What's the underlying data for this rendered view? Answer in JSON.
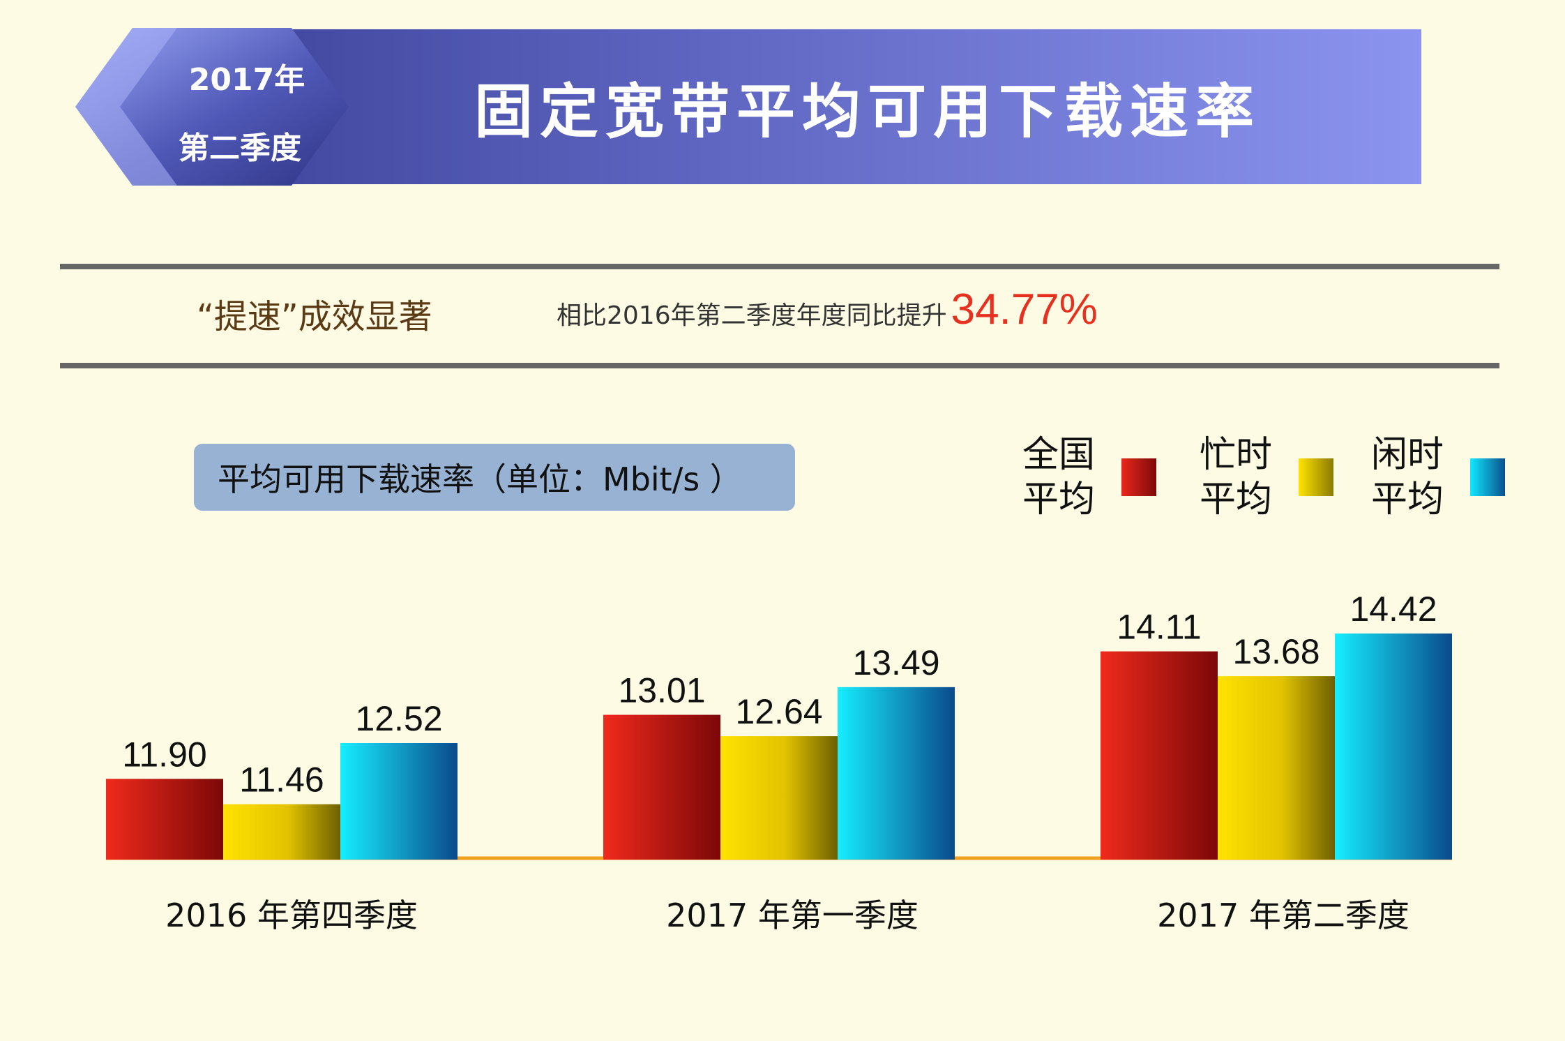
{
  "header": {
    "badge_year": "2017年",
    "badge_quarter": "第二季度",
    "title": "固定宽带平均可用下载速率"
  },
  "subtitle": {
    "left": "“提速”成效显著",
    "right_prefix": "相比2016年第二季度年度同比提升",
    "right_value": "34.77%"
  },
  "unit_label": "平均可用下载速率（单位：Mbit/s ）",
  "colors": {
    "background": "#fdfbe3",
    "national": "#c8141a",
    "busy": "#f2d800",
    "idle": "#12a8d8",
    "highlight": "#e63020",
    "axis": "#f0a020"
  },
  "chart_data": {
    "type": "bar",
    "categories": [
      "2016 年第四季度",
      "2017 年第一季度",
      "2017 年第二季度"
    ],
    "series": [
      {
        "name": "全国平均",
        "legend_lines": [
          "全国",
          "平均"
        ],
        "values": [
          11.9,
          13.01,
          14.11
        ],
        "labels": [
          "11.90",
          "13.01",
          "14.11"
        ]
      },
      {
        "name": "忙时平均",
        "legend_lines": [
          "忙时",
          "平均"
        ],
        "values": [
          11.46,
          12.64,
          13.68
        ],
        "labels": [
          "11.46",
          "12.64",
          "13.68"
        ]
      },
      {
        "name": "闲时平均",
        "legend_lines": [
          "闲时",
          "平均"
        ],
        "values": [
          12.52,
          13.49,
          14.42
        ],
        "labels": [
          "12.52",
          "13.49",
          "14.42"
        ]
      }
    ],
    "ylim": [
      10.5,
      15
    ],
    "legend_position": "top-right",
    "grid": false
  }
}
